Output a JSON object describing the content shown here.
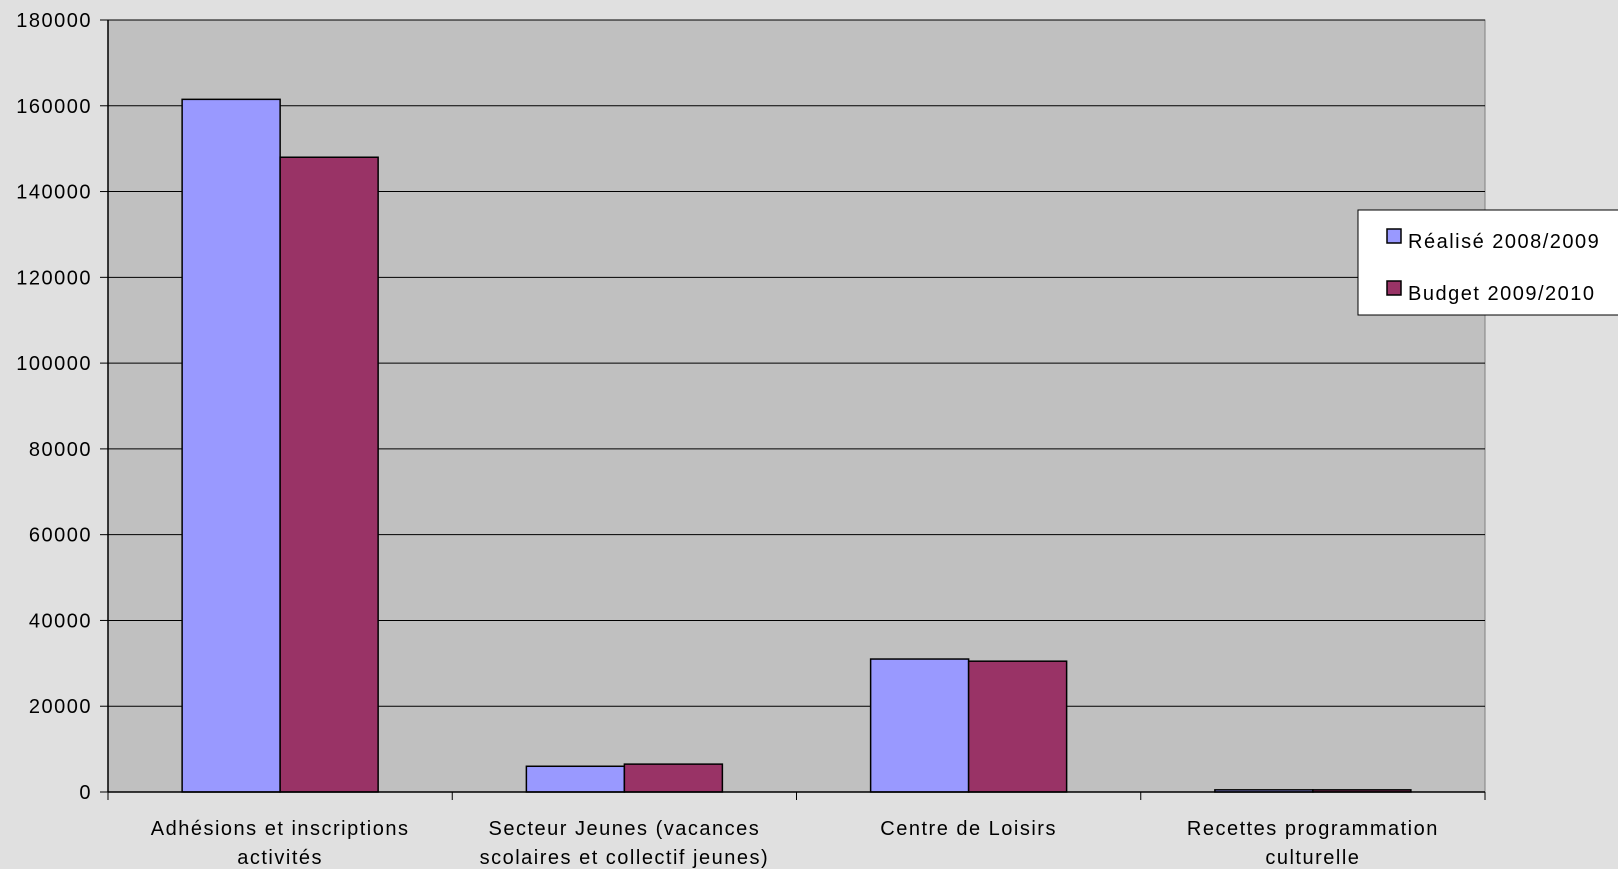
{
  "chart_data": {
    "type": "bar",
    "title": "",
    "xlabel": "",
    "ylabel": "",
    "categories": [
      [
        "Adhésions et inscriptions",
        "activités"
      ],
      [
        "Secteur Jeunes (vacances",
        "scolaires et collectif jeunes)"
      ],
      [
        "Centre de Loisirs"
      ],
      [
        "Recettes programmation",
        "culturelle"
      ]
    ],
    "series": [
      {
        "name": "Réalisé 2008/2009",
        "color": "#9999ff",
        "values": [
          161500,
          6000,
          31000,
          500
        ]
      },
      {
        "name": "Budget 2009/2010",
        "color": "#993366",
        "values": [
          148000,
          6500,
          30500,
          500
        ]
      }
    ],
    "ylim": [
      0,
      180000
    ],
    "yticks": [
      "0",
      "20000",
      "40000",
      "60000",
      "80000",
      "100000",
      "120000",
      "140000",
      "160000",
      "180000"
    ],
    "grid": true,
    "legend_position": "right",
    "plot_background": "#c0c0c0",
    "page_background": "#e0e0e0"
  }
}
